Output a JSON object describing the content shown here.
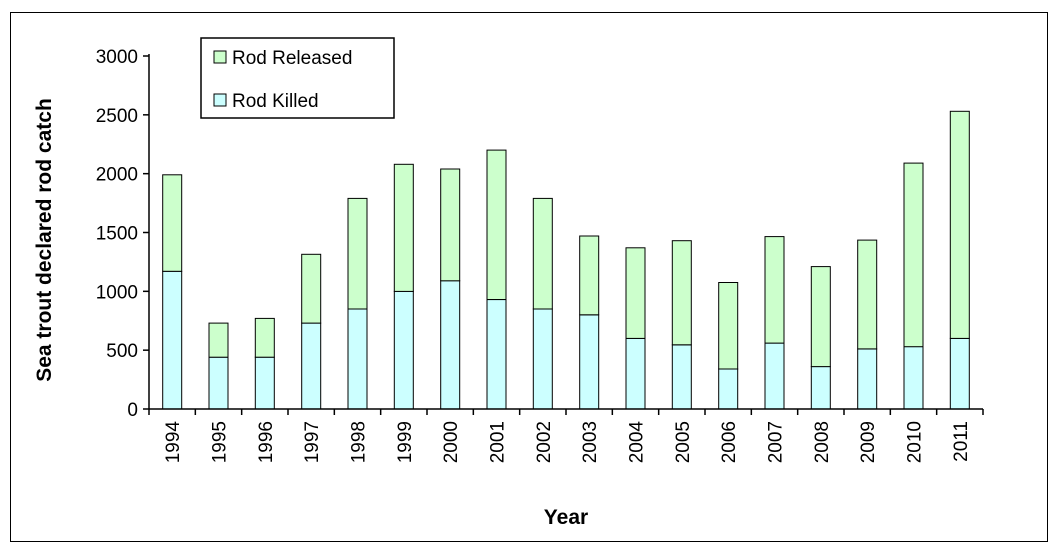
{
  "chart_data": {
    "type": "bar",
    "stacked": true,
    "categories": [
      "1994",
      "1995",
      "1996",
      "1997",
      "1998",
      "1999",
      "2000",
      "2001",
      "2002",
      "2003",
      "2004",
      "2005",
      "2006",
      "2007",
      "2008",
      "2009",
      "2010",
      "2011"
    ],
    "series": [
      {
        "name": "Rod Killed",
        "color": "#ccffff",
        "values": [
          1170,
          440,
          440,
          730,
          850,
          1000,
          1090,
          930,
          850,
          800,
          600,
          545,
          340,
          560,
          360,
          510,
          530,
          600
        ]
      },
      {
        "name": "Rod Released",
        "color": "#ccffcc",
        "values": [
          820,
          290,
          330,
          585,
          940,
          1080,
          950,
          1270,
          940,
          670,
          770,
          885,
          735,
          905,
          850,
          925,
          1560,
          1930
        ]
      }
    ],
    "xlabel": "Year",
    "ylabel": "Sea trout declared rod catch",
    "ylim": [
      0,
      3000
    ],
    "yticks": [
      0,
      500,
      1000,
      1500,
      2000,
      2500,
      3000
    ],
    "legend_position": "top-left",
    "grid": false
  }
}
